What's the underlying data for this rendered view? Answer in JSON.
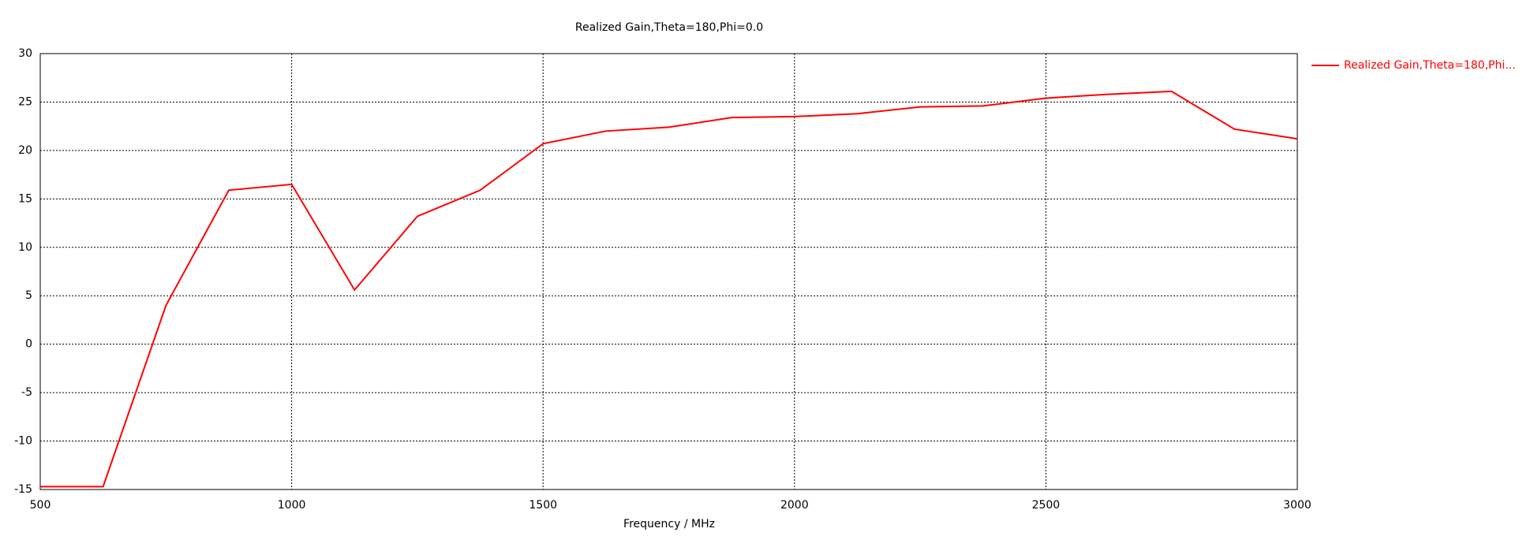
{
  "chart_data": {
    "type": "line",
    "title": "Realized Gain,Theta=180,Phi=0.0",
    "x_label": "Frequency / MHz",
    "x": [
      500,
      625,
      750,
      875,
      1000,
      1125,
      1250,
      1375,
      1500,
      1625,
      1750,
      1875,
      2000,
      2125,
      2250,
      2375,
      2500,
      2625,
      2750,
      2875,
      3000
    ],
    "series": [
      {
        "name": "Realized Gain,Theta=180,Phi...",
        "color": "#ff0000",
        "values": [
          -14.7,
          -14.7,
          4,
          15.9,
          16.5,
          5.6,
          13.2,
          15.9,
          20.7,
          22,
          22.4,
          23.4,
          23.5,
          23.8,
          24.5,
          24.6,
          25.4,
          25.8,
          26.1,
          22.2,
          21.2
        ]
      }
    ],
    "xlim": [
      500,
      3000
    ],
    "xticks": [
      500,
      1000,
      1500,
      2000,
      2500,
      3000
    ],
    "ylim": [
      -15,
      30
    ],
    "yticks": [
      -15,
      -10,
      -5,
      0,
      5,
      10,
      15,
      20,
      25,
      30
    ],
    "grid": true,
    "legend": "right"
  }
}
